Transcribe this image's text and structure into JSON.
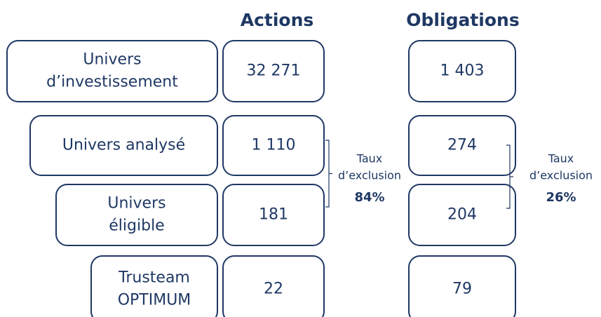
{
  "header": {
    "actions": "Actions",
    "obligations": "Obligations"
  },
  "rows": [
    {
      "label": [
        "Univers",
        "d’investissement"
      ],
      "actions": "32 271",
      "obligations": "1 403"
    },
    {
      "label": [
        "Univers analysé"
      ],
      "actions": "1 110",
      "obligations": "274"
    },
    {
      "label": [
        "Univers",
        "éligible"
      ],
      "actions": "181",
      "obligations": "204"
    },
    {
      "label": [
        "Trusteam",
        "OPTIMUM"
      ],
      "actions": "22",
      "obligations": "79"
    }
  ],
  "exclusion": {
    "actions": {
      "label": [
        "Taux",
        "d’exclusion"
      ],
      "value": "84%"
    },
    "obligations": {
      "label": [
        "Taux",
        "d’exclusion"
      ],
      "value": "26%"
    }
  }
}
